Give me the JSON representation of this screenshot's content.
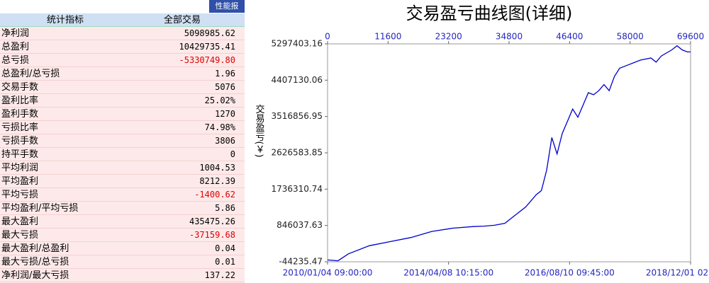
{
  "header": {
    "title": "性能报"
  },
  "table": {
    "columns": [
      "统计指标",
      "全部交易"
    ],
    "rows": [
      [
        "净利润",
        "5098985.62"
      ],
      [
        "总盈利",
        "10429735.41"
      ],
      [
        "总亏损",
        "-5330749.80"
      ],
      [
        "总盈利/总亏损",
        "1.96"
      ],
      [
        "交易手数",
        "5076"
      ],
      [
        "盈利比率",
        "25.02%"
      ],
      [
        "盈利手数",
        "1270"
      ],
      [
        "亏损比率",
        "74.98%"
      ],
      [
        "亏损手数",
        "3806"
      ],
      [
        "持平手数",
        "0"
      ],
      [
        "平均利润",
        "1004.53"
      ],
      [
        "平均盈利",
        "8212.39"
      ],
      [
        "平均亏损",
        "-1400.62"
      ],
      [
        "平均盈利/平均亏损",
        "5.86"
      ],
      [
        "最大盈利",
        "435475.26"
      ],
      [
        "最大亏损",
        "-37159.68"
      ],
      [
        "最大盈利/总盈利",
        "0.04"
      ],
      [
        "最大亏损/总亏损",
        "0.01"
      ],
      [
        "净利润/最大亏损",
        "137.22"
      ]
    ]
  },
  "chart_data": {
    "type": "line",
    "title": "交易盈亏曲线图(详细)",
    "y_label": "交易盈亏(￥)",
    "xlim": [
      0,
      69600
    ],
    "xticks": [
      0,
      11600,
      23200,
      34800,
      46400,
      58000,
      69600
    ],
    "x_date_ticks": [
      {
        "value": 0,
        "label": "2010/01/04 09:00:00"
      },
      {
        "value": 23200,
        "label": "2014/04/08 10:15:00"
      },
      {
        "value": 46400,
        "label": "2016/08/10 09:45:00"
      },
      {
        "value": 69600,
        "label": "2018/12/01 02"
      }
    ],
    "ylim": [
      -44235.47,
      5297403.16
    ],
    "yticks": [
      -44235.47,
      846037.63,
      1736310.74,
      2626583.85,
      3516856.95,
      4407130.06,
      5297403.16
    ],
    "grid": false,
    "series": [
      {
        "color": "#0000cc",
        "x": [
          0,
          2000,
          4000,
          8000,
          12000,
          16000,
          20000,
          24000,
          28000,
          30000,
          32000,
          34000,
          36000,
          38000,
          40000,
          41000,
          42000,
          43000,
          44000,
          45000,
          46000,
          47000,
          48000,
          49000,
          50000,
          51000,
          52000,
          53000,
          54000,
          55000,
          56000,
          58000,
          60000,
          62000,
          63000,
          64000,
          66000,
          67000,
          68000,
          69000,
          69600
        ],
        "values": [
          0,
          -20000,
          150000,
          350000,
          450000,
          550000,
          700000,
          780000,
          820000,
          830000,
          850000,
          900000,
          1100000,
          1300000,
          1600000,
          1700000,
          2200000,
          3000000,
          2600000,
          3100000,
          3400000,
          3700000,
          3500000,
          3800000,
          4100000,
          4050000,
          4150000,
          4300000,
          4150000,
          4500000,
          4700000,
          4800000,
          4900000,
          4950000,
          4850000,
          5000000,
          5150000,
          5250000,
          5150000,
          5100000,
          5098985.62
        ]
      }
    ]
  }
}
